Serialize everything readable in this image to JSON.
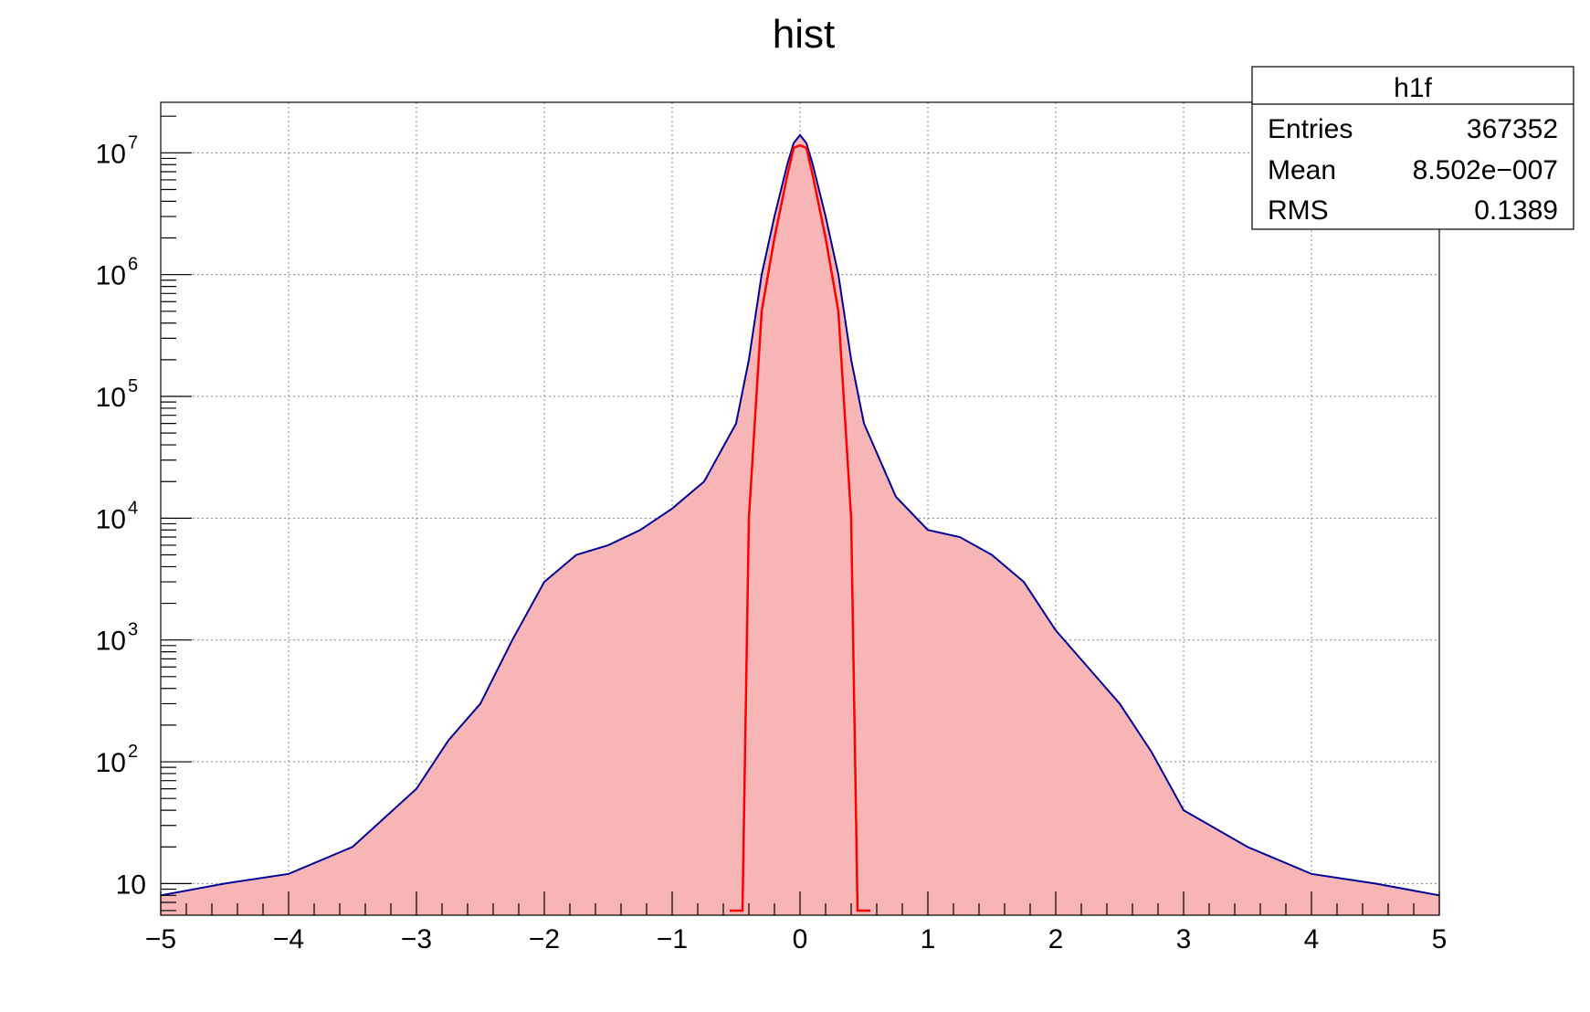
{
  "chart_data": {
    "type": "bar",
    "title": "hist",
    "xlabel": "",
    "ylabel": "",
    "xlim": [
      -5,
      5
    ],
    "ylim": [
      5.5,
      26000000
    ],
    "yscale": "log",
    "grid": true,
    "x_ticks": [
      {
        "v": -5,
        "label": "−5"
      },
      {
        "v": -4,
        "label": "−4"
      },
      {
        "v": -3,
        "label": "−3"
      },
      {
        "v": -2,
        "label": "−2"
      },
      {
        "v": -1,
        "label": "−1"
      },
      {
        "v": 0,
        "label": "0"
      },
      {
        "v": 1,
        "label": "1"
      },
      {
        "v": 2,
        "label": "2"
      },
      {
        "v": 3,
        "label": "3"
      },
      {
        "v": 4,
        "label": "4"
      },
      {
        "v": 5,
        "label": "5"
      }
    ],
    "y_ticks": [
      {
        "v": 10,
        "base": "10",
        "exp": ""
      },
      {
        "v": 100,
        "base": "10",
        "exp": "2"
      },
      {
        "v": 1000,
        "base": "10",
        "exp": "3"
      },
      {
        "v": 10000,
        "base": "10",
        "exp": "4"
      },
      {
        "v": 100000,
        "base": "10",
        "exp": "5"
      },
      {
        "v": 1000000,
        "base": "10",
        "exp": "6"
      },
      {
        "v": 10000000,
        "base": "10",
        "exp": "7"
      }
    ],
    "histogram": {
      "x": [
        -5.0,
        -4.5,
        -4.0,
        -3.5,
        -3.0,
        -2.75,
        -2.5,
        -2.25,
        -2.0,
        -1.75,
        -1.5,
        -1.25,
        -1.0,
        -0.75,
        -0.5,
        -0.4,
        -0.3,
        -0.2,
        -0.1,
        -0.05,
        0.0,
        0.05,
        0.1,
        0.2,
        0.3,
        0.4,
        0.5,
        0.75,
        1.0,
        1.25,
        1.5,
        1.75,
        2.0,
        2.25,
        2.5,
        2.75,
        3.0,
        3.5,
        4.0,
        4.5,
        5.0
      ],
      "y": [
        8,
        10,
        12,
        20,
        60,
        150,
        300,
        1000,
        3000,
        5000,
        6000,
        8000,
        12000,
        20000,
        60000,
        200000,
        1000000,
        3000000,
        8000000,
        12000000,
        14000000,
        12000000,
        8000000,
        3000000,
        1000000,
        200000,
        60000,
        15000,
        8000,
        7000,
        5000,
        3000,
        1200,
        600,
        300,
        120,
        40,
        20,
        12,
        10,
        8
      ],
      "fill_color": "#f7b5b5",
      "line_color": "#000099"
    },
    "fit": {
      "x": [
        -0.55,
        -0.45,
        -0.4,
        -0.3,
        -0.2,
        -0.1,
        -0.05,
        0.0,
        0.05,
        0.1,
        0.2,
        0.3,
        0.4,
        0.45,
        0.55
      ],
      "y": [
        6,
        6,
        10000,
        500000,
        2000000,
        6500000,
        11000000,
        11500000,
        11000000,
        6500000,
        2000000,
        500000,
        10000,
        6,
        6
      ],
      "color": "#ff0000"
    },
    "stats_box": {
      "name": "h1f",
      "rows": [
        {
          "label": "Entries",
          "value": "367352"
        },
        {
          "label": "Mean",
          "value": "8.502e−007"
        },
        {
          "label": "RMS",
          "value": "0.1389"
        }
      ]
    }
  }
}
